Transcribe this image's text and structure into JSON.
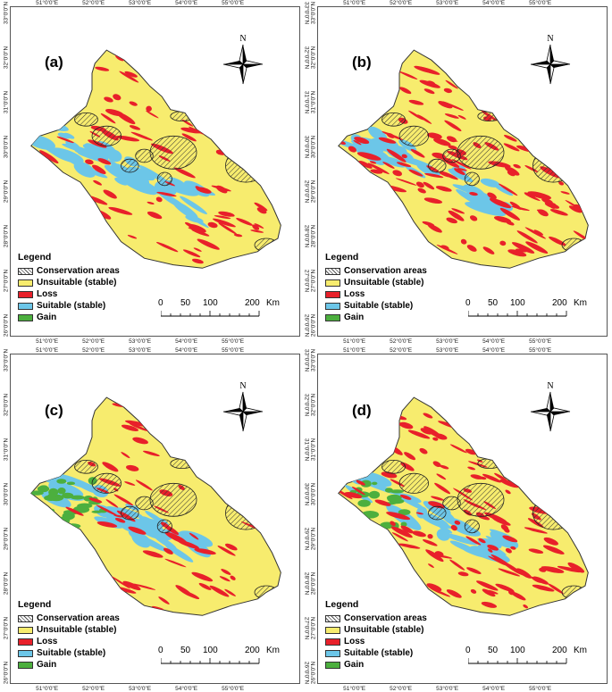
{
  "panels": [
    {
      "id": "a",
      "label": "(a)"
    },
    {
      "id": "b",
      "label": "(b)"
    },
    {
      "id": "c",
      "label": "(c)"
    },
    {
      "id": "d",
      "label": "(d)"
    }
  ],
  "axes": {
    "longitude_ticks": [
      "51°0'0\"E",
      "52°0'0\"E",
      "53°0'0\"E",
      "54°0'0\"E",
      "55°0'0\"E"
    ],
    "latitude_ticks": [
      "33°0'0\"N",
      "32°0'0\"N",
      "31°0'0\"N",
      "30°0'0\"N",
      "29°0'0\"N",
      "28°0'0\"N",
      "27°0'0\"N",
      "26°0'0\"N"
    ]
  },
  "legend": {
    "title": "Legend",
    "items": [
      {
        "label": "Conservation areas",
        "color": "#ffffff",
        "pattern": "hatch"
      },
      {
        "label": "Unsuitable (stable)",
        "color": "#f7ec6e",
        "pattern": "solid"
      },
      {
        "label": "Loss",
        "color": "#e8202a",
        "pattern": "solid"
      },
      {
        "label": "Suitable (stable)",
        "color": "#6cc6e8",
        "pattern": "solid"
      },
      {
        "label": "Gain",
        "color": "#4caf3e",
        "pattern": "solid"
      }
    ]
  },
  "scale_bar": {
    "ticks": [
      "0",
      "50",
      "100",
      "200"
    ],
    "unit": "Km"
  },
  "north_arrow": {
    "label": "N",
    "icon": "north-arrow-icon"
  },
  "colors": {
    "unsuitable": "#f7ec6e",
    "loss": "#e8202a",
    "suitable": "#6cc6e8",
    "gain": "#4caf3e",
    "outline": "#333333"
  }
}
